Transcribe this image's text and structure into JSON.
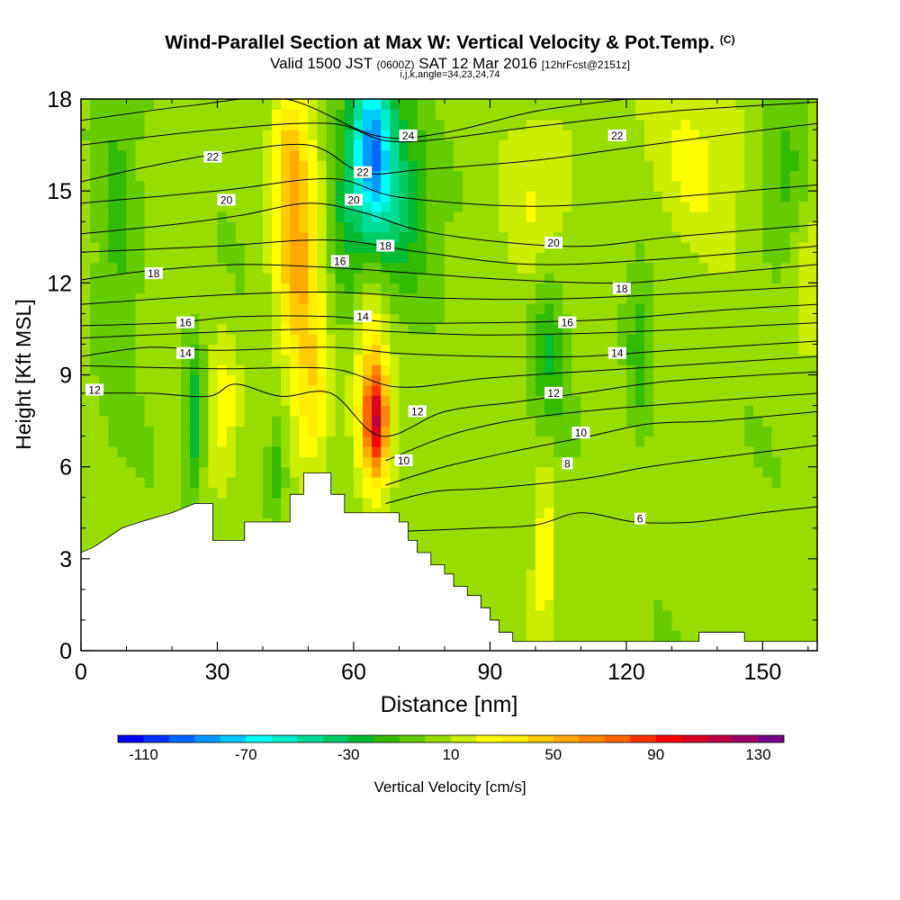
{
  "header": {
    "title": "Wind-Parallel Section at Max W: Vertical Velocity & Pot.Temp.",
    "title_unit": "(C)",
    "subtitle_valid": "Valid 1500 JST",
    "subtitle_utc": "(0600Z)",
    "subtitle_date": "SAT 12 Mar 2016",
    "subtitle_fcst": "[12hrFcst@2151z]",
    "subtitle_indices": "i,j,k,angle=34,23,24,74"
  },
  "chart_data": {
    "type": "heatmap",
    "xlabel": "Distance [nm]",
    "ylabel": "Height [Kft MSL]",
    "xlim": [
      0,
      162
    ],
    "ylim": [
      0,
      18
    ],
    "x_ticks": [
      "0",
      "30",
      "60",
      "90",
      "120",
      "150"
    ],
    "y_ticks": [
      "0",
      "3",
      "6",
      "9",
      "12",
      "15",
      "18"
    ],
    "colorbar": {
      "label": "Vertical Velocity [cm/s]",
      "tick_labels": [
        "-110",
        "-70",
        "-30",
        "10",
        "50",
        "90",
        "130"
      ],
      "tick_values": [
        -110,
        -70,
        -30,
        10,
        50,
        90,
        130
      ],
      "range": [
        -120,
        140
      ],
      "colors": [
        "#0000ff",
        "#0033ff",
        "#0066ff",
        "#0099ff",
        "#00ccff",
        "#00ffff",
        "#00eecc",
        "#00dd99",
        "#00cc66",
        "#00bb33",
        "#33bb00",
        "#66cc00",
        "#99dd00",
        "#ccee00",
        "#ffff00",
        "#ffee00",
        "#ffcc00",
        "#ffaa00",
        "#ff8800",
        "#ff6600",
        "#ff3300",
        "#ff0000",
        "#dd0022",
        "#bb0044",
        "#990066",
        "#770088"
      ]
    },
    "terrain_kft": [
      [
        0,
        3.2
      ],
      [
        3,
        3.4
      ],
      [
        6,
        3.7
      ],
      [
        9,
        4.0
      ],
      [
        13,
        4.2
      ],
      [
        20,
        4.5
      ],
      [
        25,
        4.8
      ],
      [
        29,
        4.8
      ],
      [
        29,
        3.6
      ],
      [
        36,
        3.6
      ],
      [
        36,
        4.2
      ],
      [
        46,
        4.2
      ],
      [
        46,
        5.1
      ],
      [
        49,
        5.1
      ],
      [
        49,
        5.8
      ],
      [
        55,
        5.8
      ],
      [
        55,
        5.1
      ],
      [
        58,
        5.1
      ],
      [
        58,
        4.5
      ],
      [
        70,
        4.5
      ],
      [
        70,
        4.2
      ],
      [
        72,
        4.2
      ],
      [
        72,
        3.6
      ],
      [
        74,
        3.6
      ],
      [
        74,
        3.2
      ],
      [
        77,
        3.2
      ],
      [
        77,
        2.8
      ],
      [
        80,
        2.8
      ],
      [
        80,
        2.5
      ],
      [
        82,
        2.5
      ],
      [
        82,
        2.1
      ],
      [
        85,
        2.1
      ],
      [
        85,
        1.8
      ],
      [
        88,
        1.8
      ],
      [
        88,
        1.4
      ],
      [
        90,
        1.4
      ],
      [
        90,
        1.0
      ],
      [
        92,
        1.0
      ],
      [
        92,
        0.6
      ],
      [
        95,
        0.6
      ],
      [
        95,
        0.3
      ],
      [
        136,
        0.3
      ],
      [
        136,
        0.6
      ],
      [
        146,
        0.6
      ],
      [
        146,
        0.3
      ],
      [
        162,
        0.3
      ]
    ],
    "w_cells": [
      {
        "x": 48,
        "z": 12.5,
        "w": 45,
        "sx": 5,
        "sz": 3.5
      },
      {
        "x": 46,
        "z": 16,
        "w": 35,
        "sx": 4,
        "sz": 2.5
      },
      {
        "x": 65,
        "z": 7.5,
        "w": 75,
        "sx": 2.5,
        "sz": 1.6
      },
      {
        "x": 64,
        "z": 8.5,
        "w": 40,
        "sx": 4,
        "sz": 3.5
      },
      {
        "x": 51,
        "z": 8,
        "w": 30,
        "sx": 4,
        "sz": 2.5
      },
      {
        "x": 31,
        "z": 8,
        "w": 25,
        "sx": 3,
        "sz": 2.0
      },
      {
        "x": 64,
        "z": 16.5,
        "w": -70,
        "sx": 4,
        "sz": 2.5
      },
      {
        "x": 68,
        "z": 15,
        "w": -40,
        "sx": 8,
        "sz": 3.5
      },
      {
        "x": 58,
        "z": 14,
        "w": -25,
        "sx": 4,
        "sz": 3
      },
      {
        "x": 25,
        "z": 7.5,
        "w": -35,
        "sx": 2,
        "sz": 2.5
      },
      {
        "x": 43,
        "z": 6,
        "w": -25,
        "sx": 2,
        "sz": 1.5
      },
      {
        "x": 8,
        "z": 14,
        "w": -20,
        "sx": 5,
        "sz": 5
      },
      {
        "x": 103,
        "z": 10,
        "w": -25,
        "sx": 4,
        "sz": 3
      },
      {
        "x": 123,
        "z": 9.5,
        "w": -20,
        "sx": 3,
        "sz": 3
      },
      {
        "x": 155,
        "z": 15,
        "w": -20,
        "sx": 5,
        "sz": 3
      },
      {
        "x": 135,
        "z": 16,
        "w": 20,
        "sx": 10,
        "sz": 3
      },
      {
        "x": 100,
        "z": 15,
        "w": 15,
        "sx": 8,
        "sz": 3
      },
      {
        "x": 102,
        "z": 3.5,
        "w": 25,
        "sx": 2.5,
        "sz": 3
      },
      {
        "x": 160,
        "z": 12,
        "w": 15,
        "sx": 5,
        "sz": 3
      }
    ],
    "theta_levels": [
      {
        "value": 6,
        "label": "6",
        "pts": [
          [
            72,
            3.9
          ],
          [
            88,
            4.0
          ],
          [
            100,
            4.1
          ],
          [
            110,
            4.5
          ],
          [
            122,
            4.2
          ],
          [
            135,
            4.2
          ],
          [
            150,
            4.5
          ],
          [
            162,
            4.7
          ]
        ],
        "label_x": 123
      },
      {
        "value": 8,
        "label": "8",
        "pts": [
          [
            67,
            4.8
          ],
          [
            78,
            5.2
          ],
          [
            90,
            5.3
          ],
          [
            110,
            5.6
          ],
          [
            125,
            6.0
          ],
          [
            140,
            6.3
          ],
          [
            162,
            6.7
          ]
        ],
        "label_x": 107
      },
      {
        "value": 10,
        "label": "10",
        "pts": [
          [
            67,
            5.4
          ],
          [
            80,
            6.0
          ],
          [
            95,
            6.5
          ],
          [
            112,
            7.0
          ],
          [
            125,
            7.4
          ],
          [
            140,
            7.5
          ],
          [
            162,
            7.8
          ]
        ],
        "label_x": 110
      },
      {
        "value": 11,
        "pts": [
          [
            67,
            6.2
          ],
          [
            85,
            7.2
          ],
          [
            110,
            7.8
          ],
          [
            162,
            8.4
          ]
        ]
      },
      {
        "value": 12,
        "label": "12",
        "pts": [
          [
            0,
            8.4
          ],
          [
            15,
            8.4
          ],
          [
            28,
            8.3
          ],
          [
            34,
            8.7
          ],
          [
            44,
            8.3
          ],
          [
            55,
            8.4
          ],
          [
            66,
            7.0
          ],
          [
            80,
            7.8
          ],
          [
            95,
            8.1
          ],
          [
            110,
            8.4
          ],
          [
            130,
            8.8
          ],
          [
            162,
            9.1
          ]
        ],
        "label_x": 108
      },
      {
        "value": 13,
        "pts": [
          [
            0,
            9.3
          ],
          [
            30,
            9.2
          ],
          [
            55,
            9.2
          ],
          [
            70,
            8.6
          ],
          [
            90,
            8.9
          ],
          [
            120,
            9.2
          ],
          [
            162,
            9.6
          ]
        ]
      },
      {
        "value": 14,
        "label": "14",
        "pts": [
          [
            0,
            9.6
          ],
          [
            15,
            9.9
          ],
          [
            30,
            9.8
          ],
          [
            55,
            9.9
          ],
          [
            70,
            9.7
          ],
          [
            90,
            9.6
          ],
          [
            110,
            9.6
          ],
          [
            130,
            9.8
          ],
          [
            162,
            10.1
          ]
        ],
        "label_x": 118
      },
      {
        "value": 15,
        "pts": [
          [
            0,
            10.2
          ],
          [
            30,
            10.4
          ],
          [
            55,
            10.5
          ],
          [
            70,
            10.4
          ],
          [
            90,
            10.3
          ],
          [
            120,
            10.4
          ],
          [
            162,
            10.7
          ]
        ]
      },
      {
        "value": 16,
        "label": "16",
        "pts": [
          [
            0,
            10.6
          ],
          [
            20,
            10.7
          ],
          [
            35,
            10.9
          ],
          [
            55,
            10.9
          ],
          [
            70,
            10.7
          ],
          [
            90,
            10.7
          ],
          [
            115,
            10.8
          ],
          [
            140,
            11.1
          ],
          [
            162,
            11.3
          ]
        ],
        "label_x": 107
      },
      {
        "value": 17,
        "pts": [
          [
            0,
            11.3
          ],
          [
            30,
            11.6
          ],
          [
            55,
            11.7
          ],
          [
            80,
            11.5
          ],
          [
            110,
            11.5
          ],
          [
            162,
            11.9
          ]
        ]
      },
      {
        "value": 18,
        "label": "18",
        "pts": [
          [
            0,
            12.1
          ],
          [
            15,
            12.4
          ],
          [
            35,
            12.6
          ],
          [
            55,
            12.5
          ],
          [
            75,
            12.3
          ],
          [
            95,
            12.1
          ],
          [
            120,
            12.0
          ],
          [
            140,
            12.3
          ],
          [
            162,
            12.6
          ]
        ],
        "label_x": 119
      },
      {
        "value": 19,
        "pts": [
          [
            0,
            13.0
          ],
          [
            30,
            13.2
          ],
          [
            55,
            13.4
          ],
          [
            75,
            13.0
          ],
          [
            100,
            12.6
          ],
          [
            130,
            12.8
          ],
          [
            162,
            13.2
          ]
        ]
      },
      {
        "value": 20,
        "label": "20",
        "pts": [
          [
            0,
            13.6
          ],
          [
            20,
            13.9
          ],
          [
            35,
            14.2
          ],
          [
            50,
            14.6
          ],
          [
            62,
            14.3
          ],
          [
            75,
            13.7
          ],
          [
            95,
            13.3
          ],
          [
            112,
            13.2
          ],
          [
            130,
            13.5
          ],
          [
            162,
            13.9
          ]
        ],
        "label_x": 104
      },
      {
        "value": 21,
        "pts": [
          [
            0,
            14.6
          ],
          [
            30,
            15.0
          ],
          [
            55,
            15.4
          ],
          [
            70,
            14.8
          ],
          [
            100,
            14.5
          ],
          [
            130,
            14.8
          ],
          [
            162,
            15.2
          ]
        ]
      },
      {
        "value": 22,
        "label": "22",
        "pts": [
          [
            0,
            15.3
          ],
          [
            15,
            15.8
          ],
          [
            30,
            16.2
          ],
          [
            50,
            16.5
          ],
          [
            62,
            15.6
          ],
          [
            75,
            15.7
          ],
          [
            100,
            16.0
          ],
          [
            120,
            16.4
          ],
          [
            140,
            16.8
          ],
          [
            162,
            17.2
          ]
        ],
        "label_x": 120
      },
      {
        "value": 23,
        "pts": [
          [
            0,
            16.5
          ],
          [
            30,
            17.0
          ],
          [
            55,
            17.2
          ],
          [
            70,
            16.6
          ],
          [
            100,
            17.1
          ],
          [
            130,
            17.6
          ],
          [
            162,
            17.9
          ]
        ]
      },
      {
        "value": 24,
        "label": "24",
        "pts": [
          [
            0,
            17.3
          ],
          [
            25,
            17.8
          ],
          [
            45,
            18.0
          ],
          [
            65,
            16.8
          ],
          [
            80,
            16.9
          ],
          [
            100,
            17.6
          ],
          [
            120,
            18.0
          ]
        ],
        "label_x": 72
      }
    ],
    "theta_label_positions": [
      {
        "label": "22",
        "x": 29,
        "z": 16.1
      },
      {
        "label": "20",
        "x": 32,
        "z": 14.7
      },
      {
        "label": "18",
        "x": 16,
        "z": 12.3
      },
      {
        "label": "16",
        "x": 23,
        "z": 10.7
      },
      {
        "label": "14",
        "x": 23,
        "z": 9.7
      },
      {
        "label": "12",
        "x": 3,
        "z": 8.5
      },
      {
        "label": "22",
        "x": 62,
        "z": 15.6
      },
      {
        "label": "20",
        "x": 60,
        "z": 14.7
      },
      {
        "label": "18",
        "x": 67,
        "z": 13.2
      },
      {
        "label": "16",
        "x": 57,
        "z": 12.7
      },
      {
        "label": "14",
        "x": 62,
        "z": 10.9
      },
      {
        "label": "12",
        "x": 74,
        "z": 7.8
      },
      {
        "label": "10",
        "x": 71,
        "z": 6.2
      },
      {
        "label": "24",
        "x": 72,
        "z": 16.8
      },
      {
        "label": "22",
        "x": 118,
        "z": 16.8
      },
      {
        "label": "20",
        "x": 104,
        "z": 13.3
      },
      {
        "label": "18",
        "x": 119,
        "z": 11.8
      },
      {
        "label": "16",
        "x": 107,
        "z": 10.7
      },
      {
        "label": "14",
        "x": 118,
        "z": 9.7
      },
      {
        "label": "12",
        "x": 104,
        "z": 8.4
      },
      {
        "label": "10",
        "x": 110,
        "z": 7.1
      },
      {
        "label": "8",
        "x": 107,
        "z": 6.1
      },
      {
        "label": "6",
        "x": 123,
        "z": 4.3
      }
    ]
  }
}
